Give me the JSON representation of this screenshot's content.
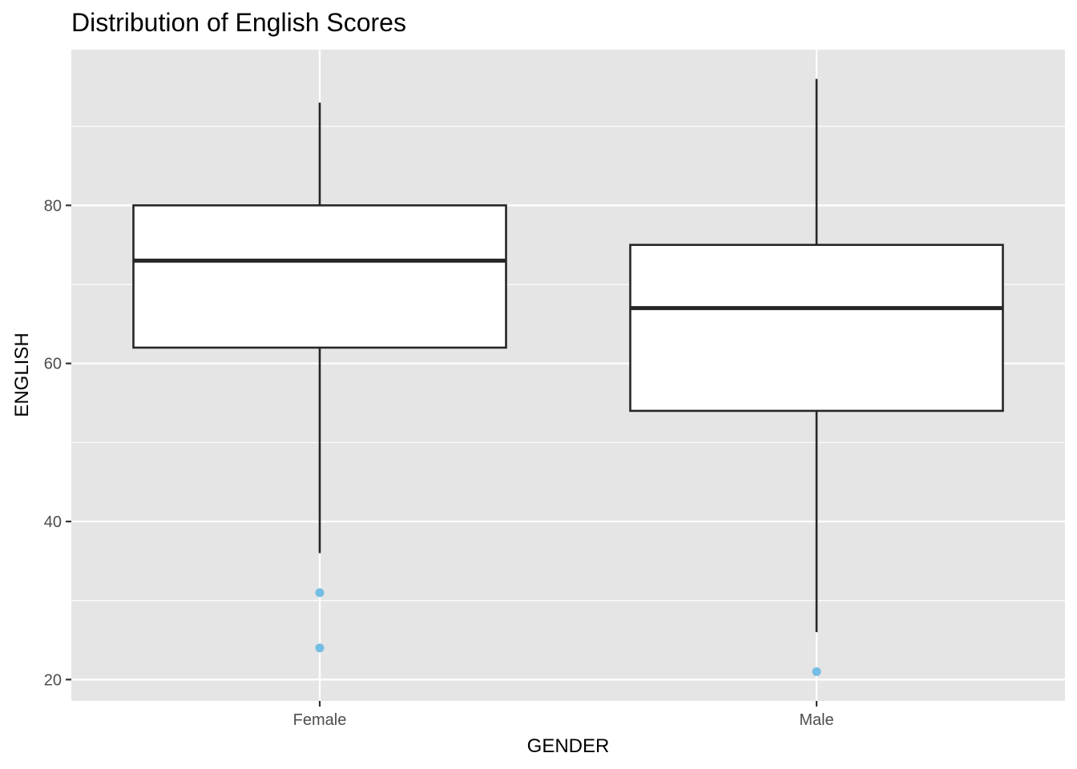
{
  "chart_data": {
    "type": "boxplot",
    "title": "Distribution of English Scores",
    "xlabel": "GENDER",
    "ylabel": "ENGLISH",
    "categories": [
      "Female",
      "Male"
    ],
    "boxes": [
      {
        "category": "Female",
        "whisker_low": 36,
        "q1": 62,
        "median": 73,
        "q3": 80,
        "whisker_high": 93,
        "outliers": [
          31,
          24
        ]
      },
      {
        "category": "Male",
        "whisker_low": 26,
        "q1": 54,
        "median": 67,
        "q3": 75,
        "whisker_high": 96,
        "outliers": [
          21
        ]
      }
    ],
    "y_ticks": [
      20,
      40,
      60,
      80
    ],
    "ylim": [
      17.3,
      99.7
    ],
    "grid": true,
    "legend": "none",
    "colors": {
      "panel_background": "#e5e5e5",
      "grid": "#ffffff",
      "box_fill": "#ffffff",
      "box_line": "#262626",
      "outlier": "#74bde3",
      "tick_label": "#4d4d4d"
    }
  }
}
